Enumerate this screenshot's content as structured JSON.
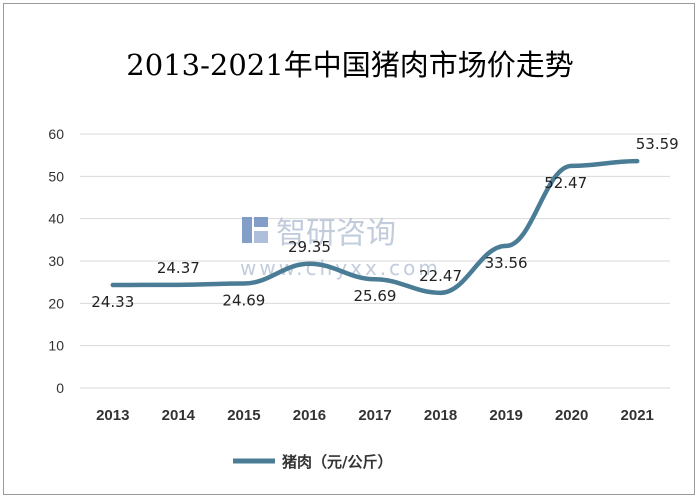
{
  "chart_data": {
    "type": "line",
    "title": "2013-2021年中国猪肉市场价走势",
    "categories": [
      "2013",
      "2014",
      "2015",
      "2016",
      "2017",
      "2018",
      "2019",
      "2020",
      "2021"
    ],
    "series": [
      {
        "name": "猪肉（元/公斤）",
        "values": [
          24.33,
          24.37,
          24.69,
          29.35,
          25.69,
          22.47,
          33.56,
          52.47,
          53.59
        ],
        "labels": [
          "24.33",
          "24.37",
          "24.69",
          "29.35",
          "25.69",
          "22.47",
          "33.56",
          "52.47",
          "53.59"
        ]
      }
    ],
    "yticks": [
      "0",
      "10",
      "20",
      "30",
      "40",
      "50",
      "60"
    ],
    "ylim": [
      0,
      60
    ],
    "grid": true,
    "legend_position": "bottom",
    "line_color": "#4a7c96"
  },
  "watermark": {
    "brand": "智研咨询",
    "url": "www.chyxx.com"
  }
}
